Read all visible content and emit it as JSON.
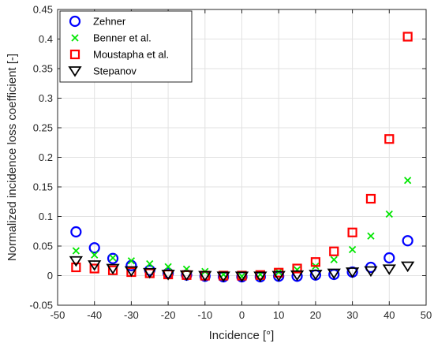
{
  "chart_data": {
    "type": "scatter",
    "xlabel": "Incidence [°]",
    "ylabel": "Normalized incidence loss coefficient [-]",
    "xlim": [
      -50,
      50
    ],
    "ylim": [
      -0.05,
      0.45
    ],
    "xticks": [
      -50,
      -40,
      -30,
      -20,
      -10,
      0,
      10,
      20,
      30,
      40,
      50
    ],
    "yticks": [
      -0.05,
      0,
      0.05,
      0.1,
      0.15,
      0.2,
      0.25,
      0.3,
      0.35,
      0.4,
      0.45
    ],
    "xtick_labels": [
      "-50",
      "-40",
      "-30",
      "-20",
      "-10",
      "0",
      "10",
      "20",
      "30",
      "40",
      "50"
    ],
    "ytick_labels": [
      "-0.05",
      "0",
      "0.05",
      "0.1",
      "0.15",
      "0.2",
      "0.25",
      "0.3",
      "0.35",
      "0.4",
      "0.45"
    ],
    "grid": true,
    "legend_position": "top-left",
    "x": [
      -45,
      -40,
      -35,
      -30,
      -25,
      -20,
      -15,
      -10,
      -5,
      0,
      5,
      10,
      15,
      20,
      25,
      30,
      35,
      40,
      45
    ],
    "series": [
      {
        "name": "Zehner",
        "marker": "circle",
        "color": "#0000ff",
        "values": [
          0.074,
          0.047,
          0.029,
          0.017,
          0.009,
          0.004,
          0.001,
          -0.001,
          -0.002,
          -0.002,
          -0.002,
          -0.001,
          -0.001,
          0.001,
          0.002,
          0.006,
          0.014,
          0.03,
          0.059
        ]
      },
      {
        "name": "Benner et al.",
        "marker": "x",
        "color": "#00e600",
        "values": [
          0.042,
          0.035,
          0.03,
          0.025,
          0.02,
          0.015,
          0.011,
          0.007,
          0.002,
          -0.001,
          0.002,
          0.006,
          0.01,
          0.016,
          0.027,
          0.044,
          0.067,
          0.104,
          0.161
        ]
      },
      {
        "name": "Moustapha et al.",
        "marker": "square",
        "color": "#ff0000",
        "values": [
          0.014,
          0.012,
          0.009,
          0.006,
          0.004,
          0.002,
          0.001,
          0.0,
          0.0,
          0.0,
          0.001,
          0.005,
          0.012,
          0.023,
          0.041,
          0.073,
          0.13,
          0.231,
          0.404
        ]
      },
      {
        "name": "Stepanov",
        "marker": "triangle-down",
        "color": "#000000",
        "values": [
          0.025,
          0.018,
          0.012,
          0.008,
          0.005,
          0.002,
          0.001,
          0.0,
          -0.001,
          -0.001,
          -0.001,
          0.0,
          0.001,
          0.002,
          0.004,
          0.006,
          0.008,
          0.011,
          0.016
        ]
      }
    ]
  },
  "colors": {
    "axis": "#262626",
    "grid": "#e2e2e2",
    "background": "#ffffff"
  }
}
